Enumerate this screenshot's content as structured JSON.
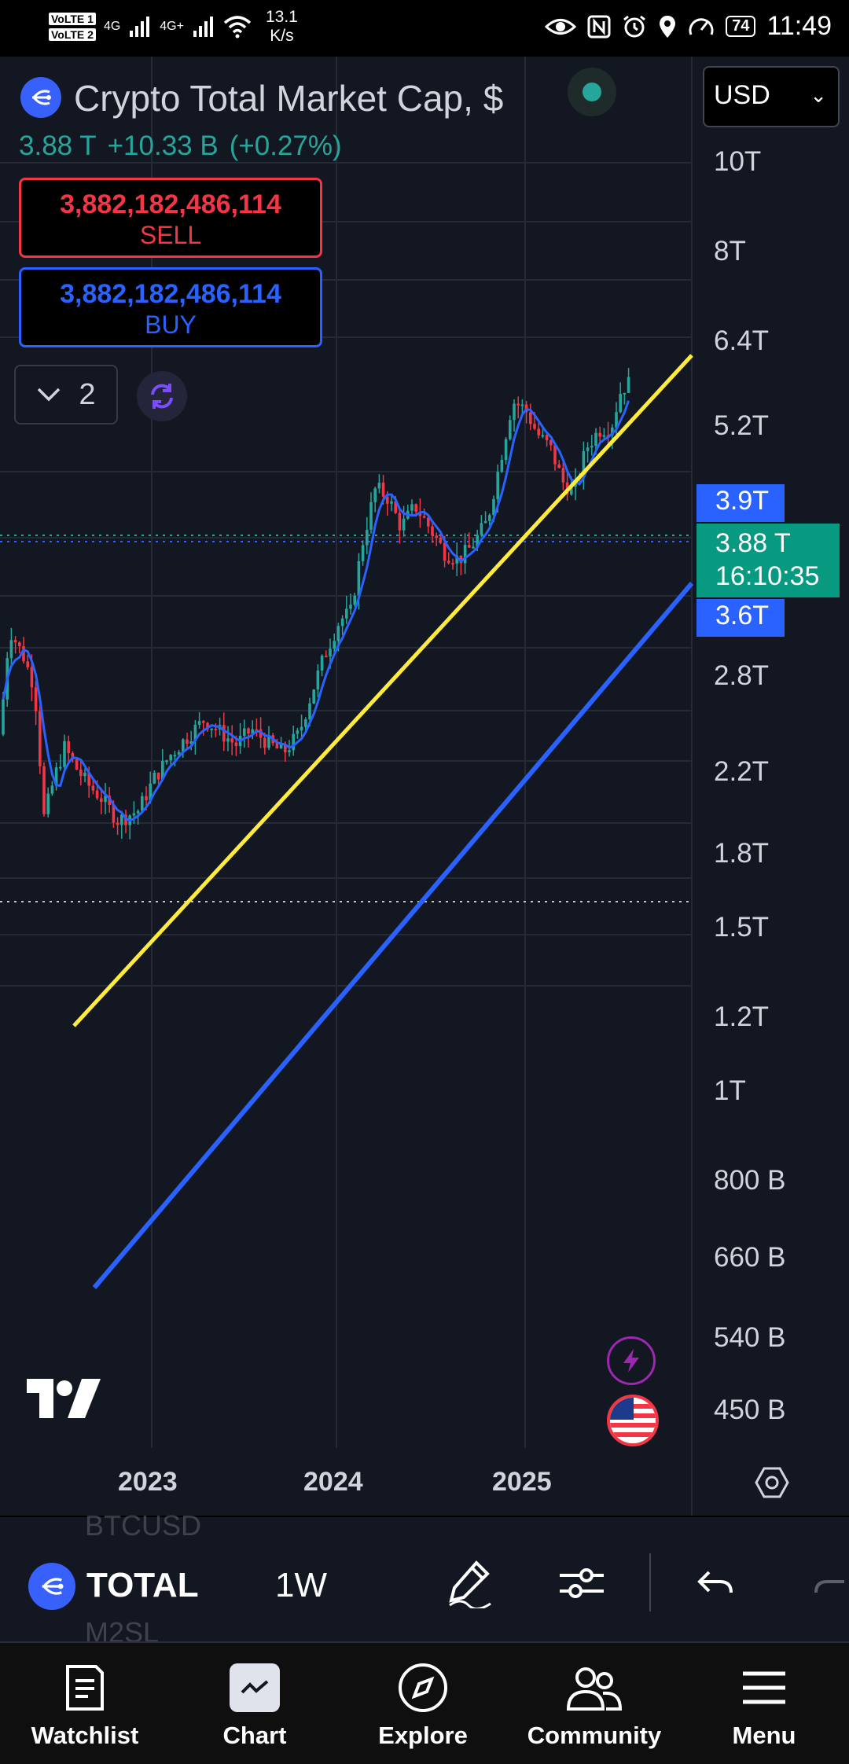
{
  "status_bar": {
    "sim1": "VoLTE 1",
    "sim2": "VoLTE 2",
    "network1": "4G",
    "network2": "4G+",
    "speed_value": "13.1",
    "speed_unit": "K/s",
    "battery": "74",
    "time": "11:49"
  },
  "header": {
    "title": "Crypto Total Market Cap, $",
    "currency": "USD",
    "last_price": "3.88 T",
    "change": "+10.33 B",
    "change_pct": "(+0.27%)",
    "sell_price": "3,882,182,486,114",
    "sell_label": "SELL",
    "buy_price": "3,882,182,486,114",
    "buy_label": "BUY",
    "indicator_count": "2"
  },
  "price_axis": {
    "labels": [
      "10T",
      "8T",
      "6.4T",
      "5.2T",
      "2.8T",
      "2.2T",
      "1.8T",
      "1.5T",
      "1.2T",
      "1T",
      "800 B",
      "660 B",
      "540 B",
      "450 B"
    ],
    "upper_tag": "3.9T",
    "current_tag_price": "3.88 T",
    "current_tag_countdown": "16:10:35",
    "lower_tag": "3.6T"
  },
  "time_axis": {
    "labels": [
      "2023",
      "2024",
      "2025"
    ]
  },
  "chart_data": {
    "type": "candlestick",
    "symbol": "TOTAL",
    "interval": "1W",
    "y_scale": "log",
    "ylim": [
      400000000000,
      11000000000000
    ],
    "x_ticks": [
      "2023",
      "2024",
      "2025"
    ],
    "moving_average_color": "#2962ff",
    "up_color": "#26a69a",
    "down_color": "#f23645",
    "trendlines": [
      {
        "color": "#ffeb3b",
        "label": "upper channel line"
      },
      {
        "color": "#2962ff",
        "label": "lower channel line"
      }
    ],
    "last_close": 3880000000000
  },
  "toolbar": {
    "symbol": "TOTAL",
    "interval": "1W",
    "ghost_above": "BTCUSD",
    "ghost_below": "M2SL"
  },
  "nav": {
    "items": [
      {
        "label": "Watchlist",
        "icon": "watchlist-icon"
      },
      {
        "label": "Chart",
        "icon": "chart-icon"
      },
      {
        "label": "Explore",
        "icon": "compass-icon"
      },
      {
        "label": "Community",
        "icon": "community-icon"
      },
      {
        "label": "Menu",
        "icon": "menu-icon"
      }
    ]
  }
}
